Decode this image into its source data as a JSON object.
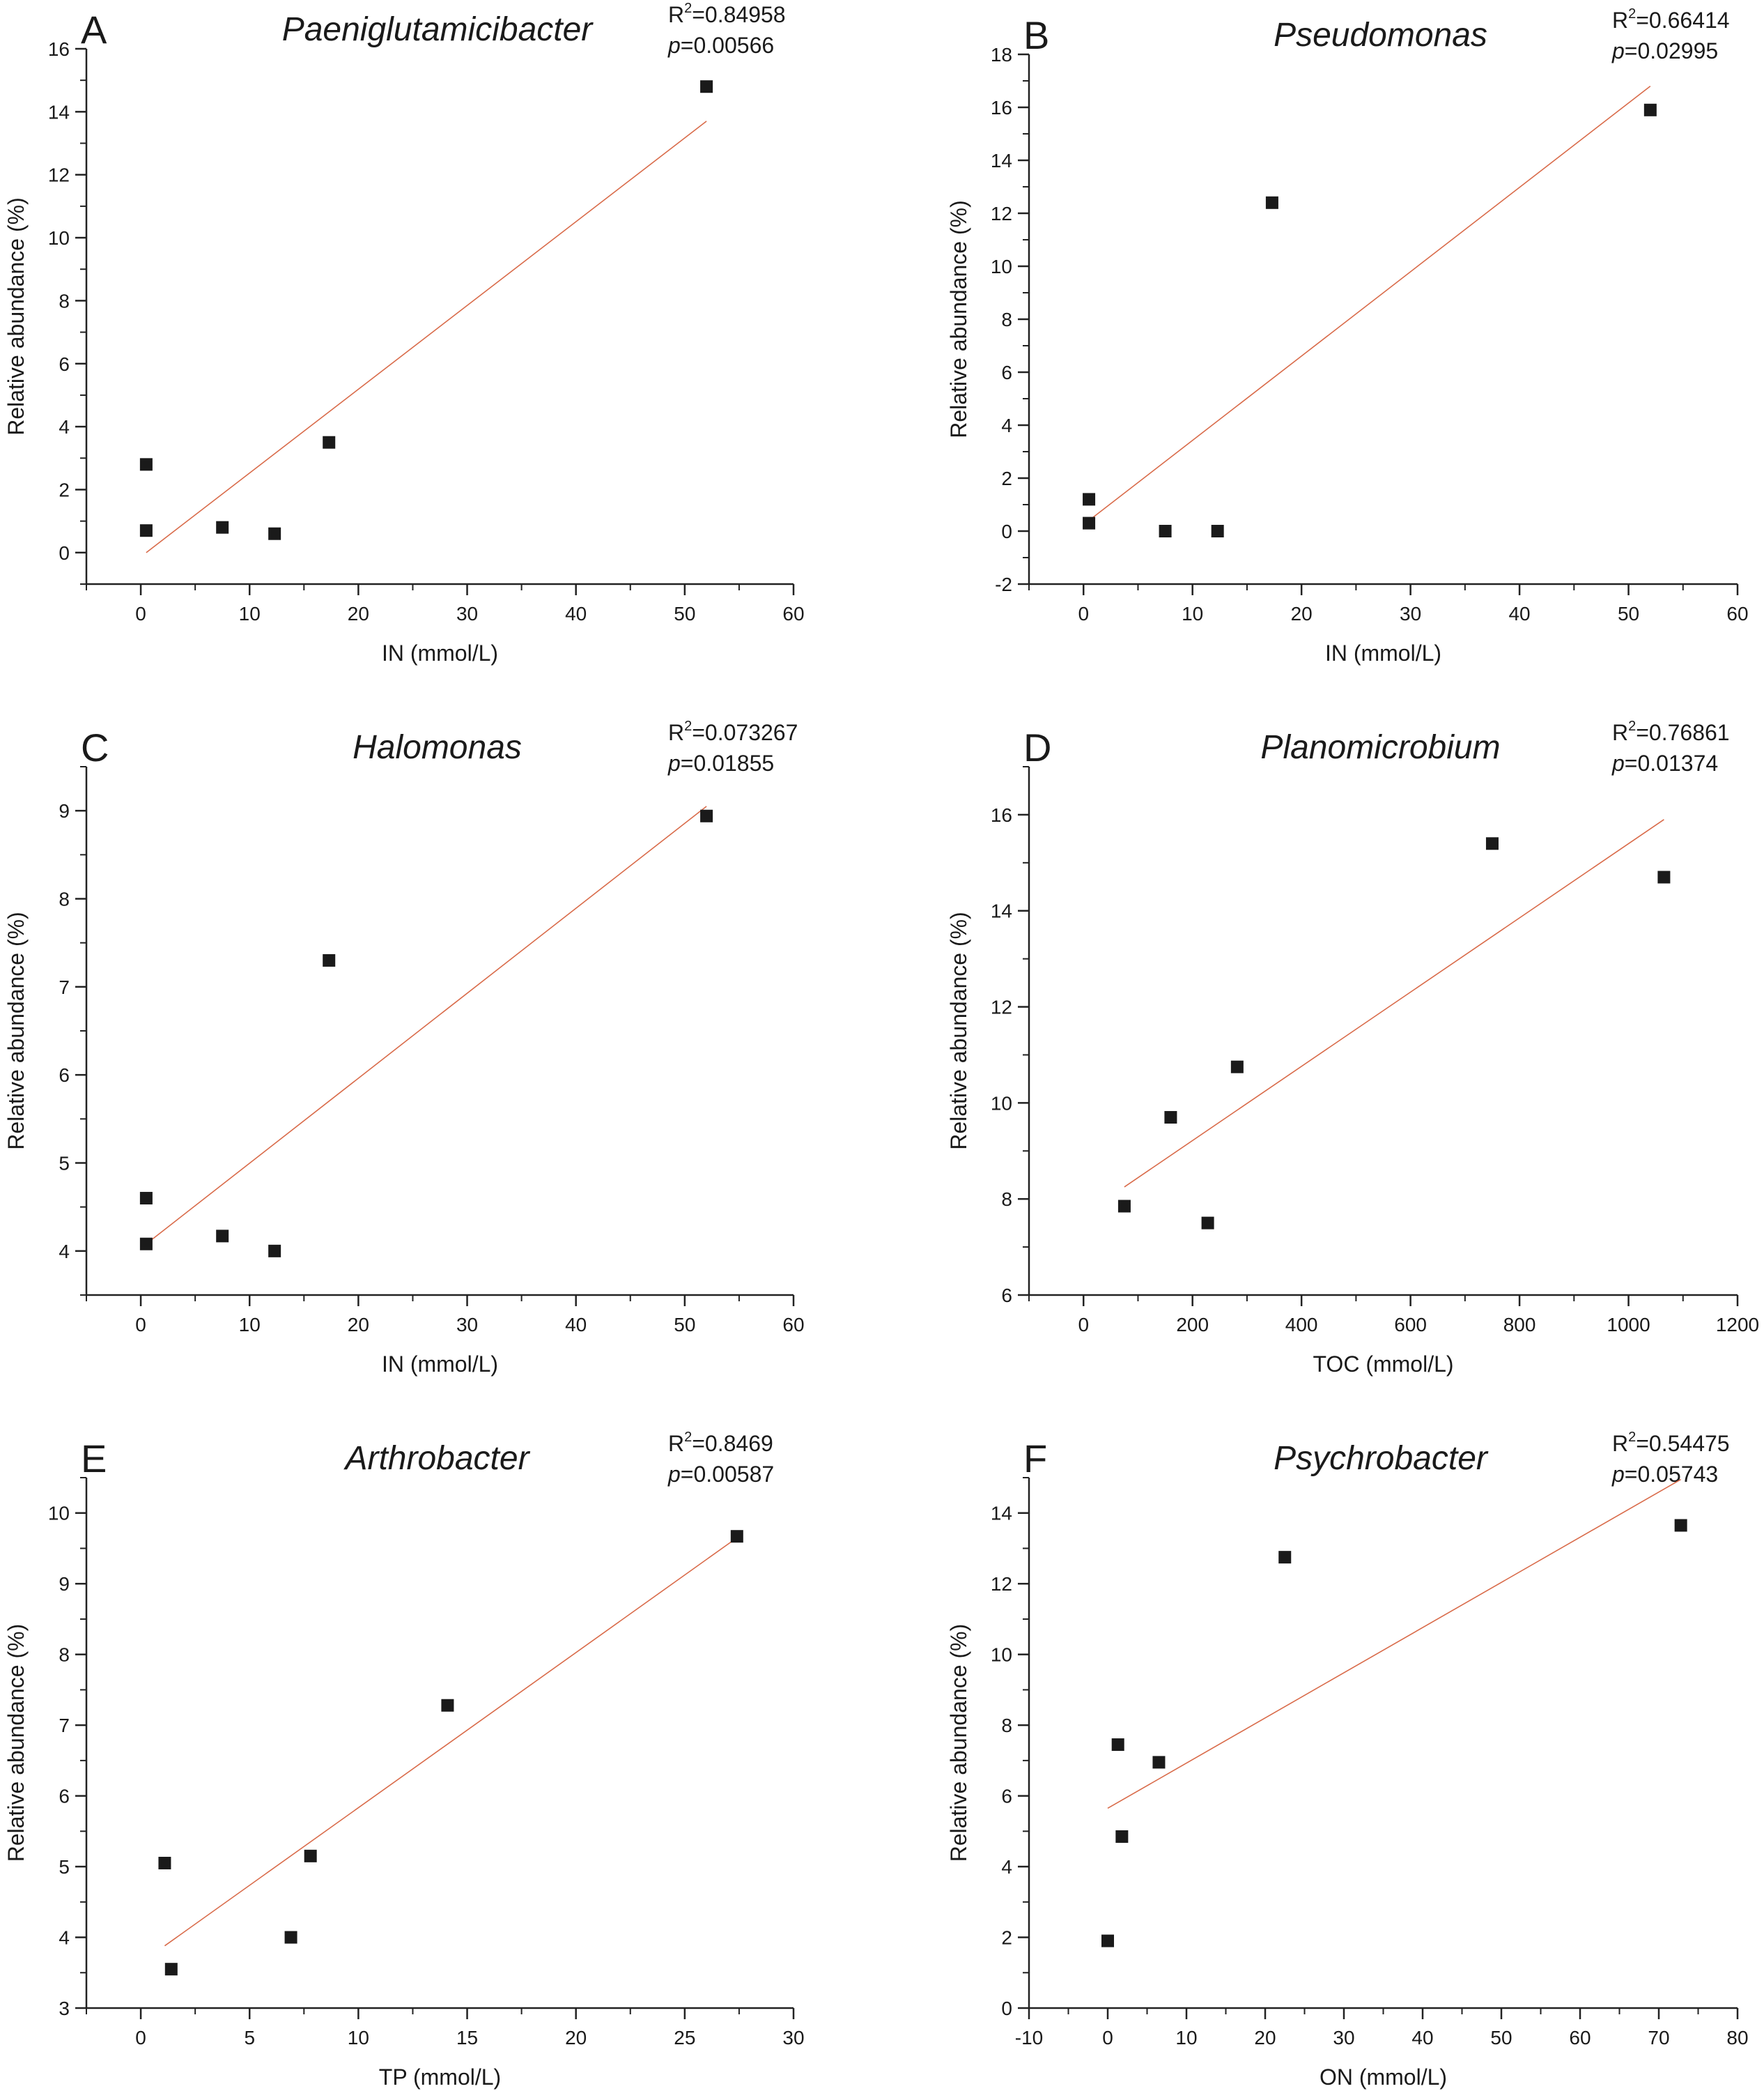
{
  "chart_data": [
    {
      "type": "scatter",
      "panel": "A",
      "title": "Paeniglutamicibacter",
      "r2": "R",
      "r2_value": "=0.84958",
      "p_label": "p",
      "p_value": "=0.00566",
      "xlabel": "IN (mmol/L)",
      "ylabel": "Relative abundance (%)",
      "xlim": [
        -5,
        60
      ],
      "ylim": [
        -1,
        16
      ],
      "xticks": [
        0,
        10,
        20,
        30,
        40,
        50,
        60
      ],
      "yticks": [
        0,
        2,
        4,
        6,
        8,
        10,
        12,
        14,
        16
      ],
      "points": [
        {
          "x": 0.5,
          "y": 2.8
        },
        {
          "x": 0.5,
          "y": 0.7
        },
        {
          "x": 7.5,
          "y": 0.8
        },
        {
          "x": 12.3,
          "y": 0.6
        },
        {
          "x": 17.3,
          "y": 3.5
        },
        {
          "x": 52.0,
          "y": 14.8
        }
      ],
      "fit": {
        "x": [
          0.5,
          52.0
        ],
        "y": [
          0.0,
          13.7
        ]
      }
    },
    {
      "type": "scatter",
      "panel": "B",
      "title": "Pseudomonas",
      "r2": "R",
      "r2_value": "=0.66414",
      "p_label": "p",
      "p_value": "=0.02995",
      "xlabel": "IN (mmol/L)",
      "ylabel": "Relative abundance (%)",
      "xlim": [
        -5,
        60
      ],
      "ylim": [
        -2,
        18
      ],
      "xticks": [
        0,
        10,
        20,
        30,
        40,
        50,
        60
      ],
      "yticks": [
        -2,
        0,
        2,
        4,
        6,
        8,
        10,
        12,
        14,
        16,
        18
      ],
      "points": [
        {
          "x": 0.5,
          "y": 1.2
        },
        {
          "x": 0.5,
          "y": 0.3
        },
        {
          "x": 7.5,
          "y": 0.0
        },
        {
          "x": 12.3,
          "y": 0.0
        },
        {
          "x": 17.3,
          "y": 12.4
        },
        {
          "x": 52.0,
          "y": 15.9
        }
      ],
      "fit": {
        "x": [
          0.5,
          52.0
        ],
        "y": [
          0.4,
          16.8
        ]
      }
    },
    {
      "type": "scatter",
      "panel": "C",
      "title": "Halomonas",
      "r2": "R",
      "r2_value": "=0.073267",
      "p_label": "p",
      "p_value": "=0.01855",
      "xlabel": "IN (mmol/L)",
      "ylabel": "Relative abundance (%)",
      "xlim": [
        -5,
        60
      ],
      "ylim": [
        3.5,
        9.5
      ],
      "xticks": [
        0,
        10,
        20,
        30,
        40,
        50,
        60
      ],
      "yticks": [
        4,
        5,
        6,
        7,
        8,
        9
      ],
      "points": [
        {
          "x": 0.5,
          "y": 4.6
        },
        {
          "x": 0.5,
          "y": 4.08
        },
        {
          "x": 7.5,
          "y": 4.17
        },
        {
          "x": 12.3,
          "y": 4.0
        },
        {
          "x": 17.3,
          "y": 7.3
        },
        {
          "x": 52.0,
          "y": 8.94
        }
      ],
      "fit": {
        "x": [
          0.5,
          52.0
        ],
        "y": [
          4.08,
          9.05
        ]
      }
    },
    {
      "type": "scatter",
      "panel": "D",
      "title": "Planomicrobium",
      "r2": "R",
      "r2_value": "=0.76861",
      "p_label": "p",
      "p_value": "=0.01374",
      "xlabel": "TOC (mmol/L)",
      "ylabel": "Relative abundance (%)",
      "xlim": [
        -100,
        1200
      ],
      "ylim": [
        6,
        17
      ],
      "xticks": [
        0,
        200,
        400,
        600,
        800,
        1000,
        1200
      ],
      "yticks": [
        6,
        8,
        10,
        12,
        14,
        16
      ],
      "points": [
        {
          "x": 75,
          "y": 7.85
        },
        {
          "x": 160,
          "y": 9.7
        },
        {
          "x": 228,
          "y": 7.5
        },
        {
          "x": 282,
          "y": 10.75
        },
        {
          "x": 750,
          "y": 15.4
        },
        {
          "x": 1065,
          "y": 14.7
        }
      ],
      "fit": {
        "x": [
          75,
          1065
        ],
        "y": [
          8.25,
          15.9
        ]
      }
    },
    {
      "type": "scatter",
      "panel": "E",
      "title": "Arthrobacter",
      "r2": "R",
      "r2_value": "=0.8469",
      "p_label": "p",
      "p_value": "=0.00587",
      "xlabel": "TP (mmol/L)",
      "ylabel": "Relative abundance (%)",
      "xlim": [
        -2.5,
        30
      ],
      "ylim": [
        3,
        10.5
      ],
      "xticks": [
        0,
        5,
        10,
        15,
        20,
        25,
        30
      ],
      "yticks": [
        3,
        4,
        5,
        6,
        7,
        8,
        9,
        10
      ],
      "points": [
        {
          "x": 1.1,
          "y": 5.05
        },
        {
          "x": 1.4,
          "y": 3.55
        },
        {
          "x": 6.9,
          "y": 4.0
        },
        {
          "x": 7.8,
          "y": 5.15
        },
        {
          "x": 14.1,
          "y": 7.28
        },
        {
          "x": 27.4,
          "y": 9.67
        }
      ],
      "fit": {
        "x": [
          1.1,
          27.4
        ],
        "y": [
          3.88,
          9.65
        ]
      }
    },
    {
      "type": "scatter",
      "panel": "F",
      "title": "Psychrobacter",
      "r2": "R",
      "r2_value": "=0.54475",
      "p_label": "p",
      "p_value": "=0.05743",
      "xlabel": "ON (mmol/L)",
      "ylabel": "Relative abundance (%)",
      "xlim": [
        -10,
        80
      ],
      "ylim": [
        0,
        15
      ],
      "xticks": [
        -10,
        0,
        10,
        20,
        30,
        40,
        50,
        60,
        70,
        80
      ],
      "yticks": [
        0,
        2,
        4,
        6,
        8,
        10,
        12,
        14
      ],
      "points": [
        {
          "x": 0.0,
          "y": 1.9
        },
        {
          "x": 1.3,
          "y": 7.45
        },
        {
          "x": 1.8,
          "y": 4.85
        },
        {
          "x": 6.5,
          "y": 6.95
        },
        {
          "x": 22.5,
          "y": 12.75
        },
        {
          "x": 72.8,
          "y": 13.65
        }
      ],
      "fit": {
        "x": [
          0.0,
          72.8
        ],
        "y": [
          5.65,
          14.95
        ]
      }
    }
  ]
}
